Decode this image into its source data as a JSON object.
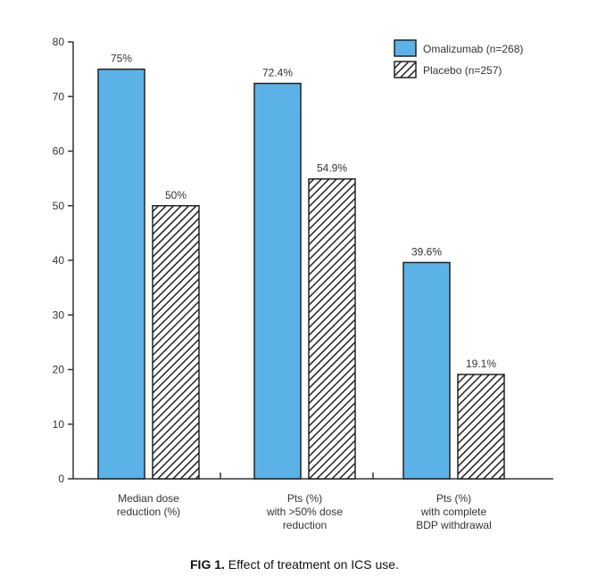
{
  "figure": {
    "caption_label": "FIG 1.",
    "caption_text": "Effect of treatment on ICS use."
  },
  "chart_data": {
    "type": "bar",
    "title": "",
    "xlabel": "",
    "ylabel": "",
    "ylim": [
      0,
      80
    ],
    "yticks": [
      0,
      10,
      20,
      30,
      40,
      50,
      60,
      70,
      80
    ],
    "categories": [
      [
        "Median dose",
        "reduction (%)"
      ],
      [
        "Pts (%)",
        "with >50% dose",
        "reduction"
      ],
      [
        "Pts (%)",
        "with complete",
        "BDP withdrawal"
      ]
    ],
    "series": [
      {
        "name": "Omalizumab (n=268)",
        "color": "#5bb2e6",
        "pattern": "solid",
        "values": [
          75,
          72.4,
          39.6
        ],
        "labels": [
          "75%",
          "72.4%",
          "39.6%"
        ]
      },
      {
        "name": "Placebo (n=257)",
        "color": "#ffffff",
        "pattern": "diagonal-hatch",
        "values": [
          50,
          54.9,
          19.1
        ],
        "labels": [
          "50%",
          "54.9%",
          "19.1%"
        ]
      }
    ],
    "legend_position": "top-right",
    "grid": false
  }
}
